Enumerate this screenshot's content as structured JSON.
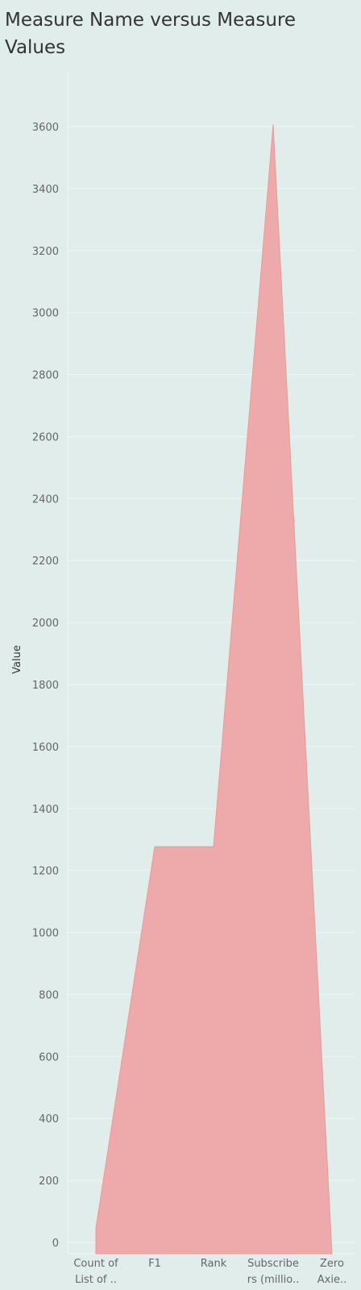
{
  "chart_data": {
    "type": "area",
    "title": "Measure Name versus Measure Values",
    "xlabel": "",
    "ylabel": "Value",
    "categories": [
      "Count of List of ..",
      "F1",
      "Rank",
      "Subscribers (millio..",
      "Zero Axie.."
    ],
    "category_tick_lines": [
      [
        "Count of",
        "List of .."
      ],
      [
        "F1"
      ],
      [
        "Rank"
      ],
      [
        "Subscribe",
        "rs (millio.."
      ],
      [
        "Zero",
        "Axie.."
      ]
    ],
    "series": [
      {
        "values": [
          45,
          1277,
          1277,
          3607,
          0
        ]
      }
    ],
    "yticks": [
      0,
      200,
      400,
      600,
      800,
      1000,
      1200,
      1400,
      1600,
      1800,
      2000,
      2200,
      2400,
      2600,
      2800,
      3000,
      3200,
      3400,
      3600
    ],
    "ylim": [
      0,
      3600
    ],
    "grid": true,
    "legend": "none"
  },
  "colors": {
    "background": "#e0edea",
    "area_fill": "#eea6a6",
    "area_stroke": "#e89a9a",
    "gridline": "#f1f7f5",
    "tick_label": "#666666",
    "title": "#333333"
  }
}
